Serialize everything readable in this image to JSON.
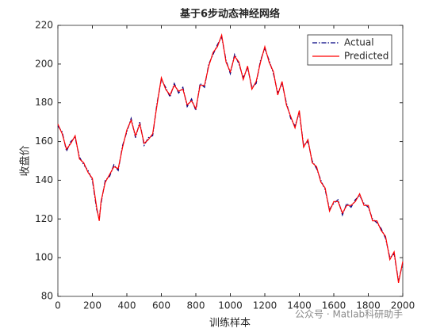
{
  "chart_data": {
    "type": "line",
    "title": "基于6步动态神经网络",
    "x_label": "训练样本",
    "y_label": "收盘价",
    "watermark": "公众号 · Matlab科研助手",
    "x": [
      0,
      25,
      50,
      75,
      100,
      125,
      150,
      175,
      200,
      225,
      240,
      250,
      275,
      300,
      325,
      350,
      375,
      400,
      425,
      450,
      475,
      500,
      525,
      550,
      575,
      600,
      625,
      650,
      675,
      700,
      725,
      750,
      775,
      800,
      825,
      850,
      875,
      900,
      925,
      950,
      975,
      1000,
      1025,
      1050,
      1075,
      1100,
      1125,
      1150,
      1175,
      1200,
      1225,
      1250,
      1275,
      1300,
      1325,
      1350,
      1375,
      1400,
      1425,
      1450,
      1475,
      1500,
      1525,
      1550,
      1575,
      1600,
      1625,
      1650,
      1675,
      1700,
      1725,
      1750,
      1775,
      1800,
      1825,
      1850,
      1875,
      1900,
      1925,
      1950,
      1975,
      2000
    ],
    "series": [
      {
        "name": "Actual",
        "color": "#000080",
        "linestyle": "dashdot",
        "values": [
          168,
          165,
          155,
          160,
          162,
          152,
          148,
          145,
          140,
          125,
          120,
          128,
          140,
          142,
          148,
          145,
          158,
          165,
          172,
          162,
          170,
          158,
          162,
          163,
          180,
          192,
          188,
          183,
          190,
          185,
          188,
          178,
          182,
          176,
          190,
          188,
          200,
          205,
          210,
          214,
          202,
          195,
          205,
          200,
          193,
          198,
          188,
          190,
          202,
          208,
          202,
          195,
          185,
          190,
          180,
          172,
          168,
          175,
          158,
          160,
          150,
          146,
          140,
          135,
          125,
          128,
          130,
          122,
          128,
          126,
          130,
          132,
          128,
          126,
          120,
          118,
          115,
          110,
          100,
          102,
          88,
          97
        ]
      },
      {
        "name": "Predicted",
        "color": "#ff0000",
        "linestyle": "solid",
        "values": [
          169,
          164,
          156,
          159,
          163,
          151,
          149,
          144,
          141,
          126,
          119,
          129,
          139,
          143,
          147,
          146,
          157,
          166,
          171,
          163,
          169,
          159,
          161,
          164,
          179,
          193,
          187,
          184,
          189,
          186,
          187,
          179,
          181,
          177,
          189,
          189,
          199,
          206,
          209,
          215,
          201,
          196,
          204,
          201,
          192,
          199,
          187,
          191,
          201,
          209,
          201,
          196,
          184,
          191,
          179,
          173,
          167,
          176,
          157,
          161,
          149,
          147,
          139,
          136,
          124,
          129,
          129,
          123,
          127,
          127,
          129,
          133,
          127,
          127,
          119,
          119,
          114,
          111,
          99,
          103,
          87,
          98
        ]
      }
    ],
    "xlim": [
      0,
      2000
    ],
    "xticks": [
      0,
      200,
      400,
      600,
      800,
      1000,
      1200,
      1400,
      1600,
      1800,
      2000
    ],
    "ylim": [
      80,
      220
    ],
    "yticks": [
      80,
      100,
      120,
      140,
      160,
      180,
      200,
      220
    ],
    "legend": "top-right"
  }
}
